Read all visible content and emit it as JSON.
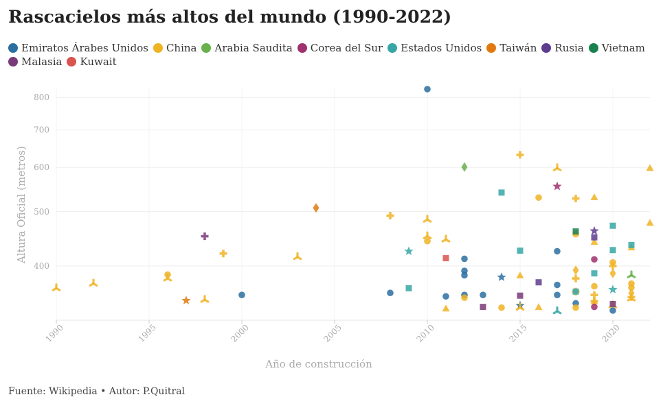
{
  "title": "Rascacielos más altos del mundo (1990-2022)",
  "footer": "Fuente: Wikipedia • Autor: P.Quitral",
  "legend": [
    {
      "name": "Emiratos Árabes Unidos",
      "color": "#2b6fa0"
    },
    {
      "name": "China",
      "color": "#f0b323"
    },
    {
      "name": "Arabia Saudita",
      "color": "#6ab04c"
    },
    {
      "name": "Corea del Sur",
      "color": "#a0306e"
    },
    {
      "name": "Estados Unidos",
      "color": "#36a7a6"
    },
    {
      "name": "Taiwán",
      "color": "#e07a10"
    },
    {
      "name": "Rusia",
      "color": "#5e3d8f"
    },
    {
      "name": "Vietnam",
      "color": "#1a8050"
    },
    {
      "name": "Malasia",
      "color": "#7a3a7a"
    },
    {
      "name": "Kuwait",
      "color": "#d9534f"
    }
  ],
  "chart_data": {
    "type": "scatter",
    "title": "Rascacielos más altos del mundo (1990-2022)",
    "xlabel": "Año de construcción",
    "ylabel": "Altura Oficial (metros)",
    "xlim": [
      1990,
      2022
    ],
    "ylim": [
      320,
      828
    ],
    "y_scale": "log",
    "x_ticks": [
      1990,
      1995,
      2000,
      2005,
      2010,
      2015,
      2020
    ],
    "y_ticks": [
      400,
      500,
      600,
      700,
      800
    ],
    "grid": true,
    "legend_position": "top",
    "series": [
      {
        "name": "Emiratos Árabes Unidos",
        "color": "#2b6fa0",
        "marker": "circle",
        "points": [
          [
            2000,
            355
          ],
          [
            2008,
            358
          ],
          [
            2010,
            828
          ],
          [
            2011,
            353
          ],
          [
            2012,
            412
          ],
          [
            2012,
            392
          ],
          [
            2012,
            385
          ],
          [
            2012,
            355
          ],
          [
            2013,
            355
          ],
          [
            2017,
            425
          ],
          [
            2017,
            370
          ],
          [
            2017,
            355
          ],
          [
            2018,
            343
          ],
          [
            2020,
            333
          ]
        ]
      },
      {
        "name": "Emiratos Árabes Unidos",
        "color": "#2b6fa0",
        "marker": "star",
        "points": [
          [
            2014,
            382
          ],
          [
            2015,
            340
          ]
        ]
      },
      {
        "name": "China",
        "color": "#f0b323",
        "marker": "tri",
        "points": [
          [
            1990,
            365
          ],
          [
            1992,
            372
          ],
          [
            1996,
            380
          ],
          [
            1998,
            348
          ],
          [
            2003,
            415
          ],
          [
            2010,
            484
          ],
          [
            2010,
            452
          ],
          [
            2011,
            446
          ],
          [
            2015,
            337
          ],
          [
            2017,
            598
          ],
          [
            2020,
            340
          ],
          [
            2021,
            350
          ]
        ]
      },
      {
        "name": "China",
        "color": "#f0b323",
        "marker": "cross",
        "points": [
          [
            1999,
            421
          ],
          [
            2008,
            492
          ],
          [
            2015,
            632
          ],
          [
            2018,
            528
          ],
          [
            2018,
            380
          ],
          [
            2018,
            360
          ],
          [
            2019,
            355
          ],
          [
            2019,
            346
          ],
          [
            2020,
            400
          ],
          [
            2021,
            352
          ]
        ]
      },
      {
        "name": "China",
        "color": "#f0b323",
        "marker": "circle",
        "points": [
          [
            1996,
            386
          ],
          [
            2010,
            443
          ],
          [
            2012,
            351
          ],
          [
            2014,
            337
          ],
          [
            2016,
            530
          ],
          [
            2018,
            456
          ],
          [
            2018,
            337
          ],
          [
            2019,
            368
          ],
          [
            2020,
            406
          ],
          [
            2021,
            372
          ],
          [
            2021,
            366
          ]
        ]
      },
      {
        "name": "China",
        "color": "#f0b323",
        "marker": "triangle",
        "points": [
          [
            2011,
            336
          ],
          [
            2015,
            385
          ],
          [
            2016,
            338
          ],
          [
            2019,
            531
          ],
          [
            2019,
            442
          ],
          [
            2019,
            346
          ],
          [
            2021,
            432
          ],
          [
            2022,
            599
          ],
          [
            2022,
            478
          ]
        ]
      },
      {
        "name": "China",
        "color": "#f0b323",
        "marker": "diamond",
        "points": [
          [
            2018,
            393
          ],
          [
            2020,
            388
          ],
          [
            2021,
            358
          ]
        ]
      },
      {
        "name": "Arabia Saudita",
        "color": "#6ab04c",
        "marker": "diamond",
        "points": [
          [
            2012,
            601
          ]
        ]
      },
      {
        "name": "Arabia Saudita",
        "color": "#6ab04c",
        "marker": "tri",
        "points": [
          [
            2021,
            385
          ]
        ]
      },
      {
        "name": "Corea del Sur",
        "color": "#a0306e",
        "marker": "star",
        "points": [
          [
            2017,
            555
          ]
        ]
      },
      {
        "name": "Corea del Sur",
        "color": "#a0306e",
        "marker": "circle",
        "points": [
          [
            2019,
            411
          ],
          [
            2019,
            338
          ]
        ]
      },
      {
        "name": "Estados Unidos",
        "color": "#36a7a6",
        "marker": "square",
        "points": [
          [
            2009,
            365
          ],
          [
            2014,
            541
          ],
          [
            2015,
            426
          ],
          [
            2018,
            360
          ],
          [
            2019,
            388
          ],
          [
            2020,
            472
          ],
          [
            2020,
            427
          ],
          [
            2021,
            436
          ]
        ]
      },
      {
        "name": "Estados Unidos",
        "color": "#36a7a6",
        "marker": "star",
        "points": [
          [
            2009,
            425
          ],
          [
            2020,
            363
          ]
        ]
      },
      {
        "name": "Estados Unidos",
        "color": "#36a7a6",
        "marker": "tri",
        "points": [
          [
            2017,
            332
          ]
        ]
      },
      {
        "name": "Taiwán",
        "color": "#e07a10",
        "marker": "diamond",
        "points": [
          [
            2004,
            508
          ]
        ]
      },
      {
        "name": "Taiwán",
        "color": "#e07a10",
        "marker": "star",
        "points": [
          [
            1997,
            347
          ]
        ]
      },
      {
        "name": "Rusia",
        "color": "#5e3d8f",
        "marker": "star",
        "points": [
          [
            2019,
            462
          ]
        ]
      },
      {
        "name": "Rusia",
        "color": "#5e3d8f",
        "marker": "square",
        "points": [
          [
            2016,
            374
          ],
          [
            2019,
            450
          ]
        ]
      },
      {
        "name": "Vietnam",
        "color": "#1a8050",
        "marker": "square",
        "points": [
          [
            2018,
            461
          ]
        ]
      },
      {
        "name": "Malasia",
        "color": "#7a3a7a",
        "marker": "cross",
        "points": [
          [
            1998,
            452
          ]
        ]
      },
      {
        "name": "Malasia",
        "color": "#7a3a7a",
        "marker": "square",
        "points": [
          [
            2013,
            338
          ],
          [
            2015,
            354
          ],
          [
            2020,
            342
          ]
        ]
      },
      {
        "name": "Kuwait",
        "color": "#d9534f",
        "marker": "square",
        "points": [
          [
            2011,
            413
          ]
        ]
      }
    ]
  }
}
